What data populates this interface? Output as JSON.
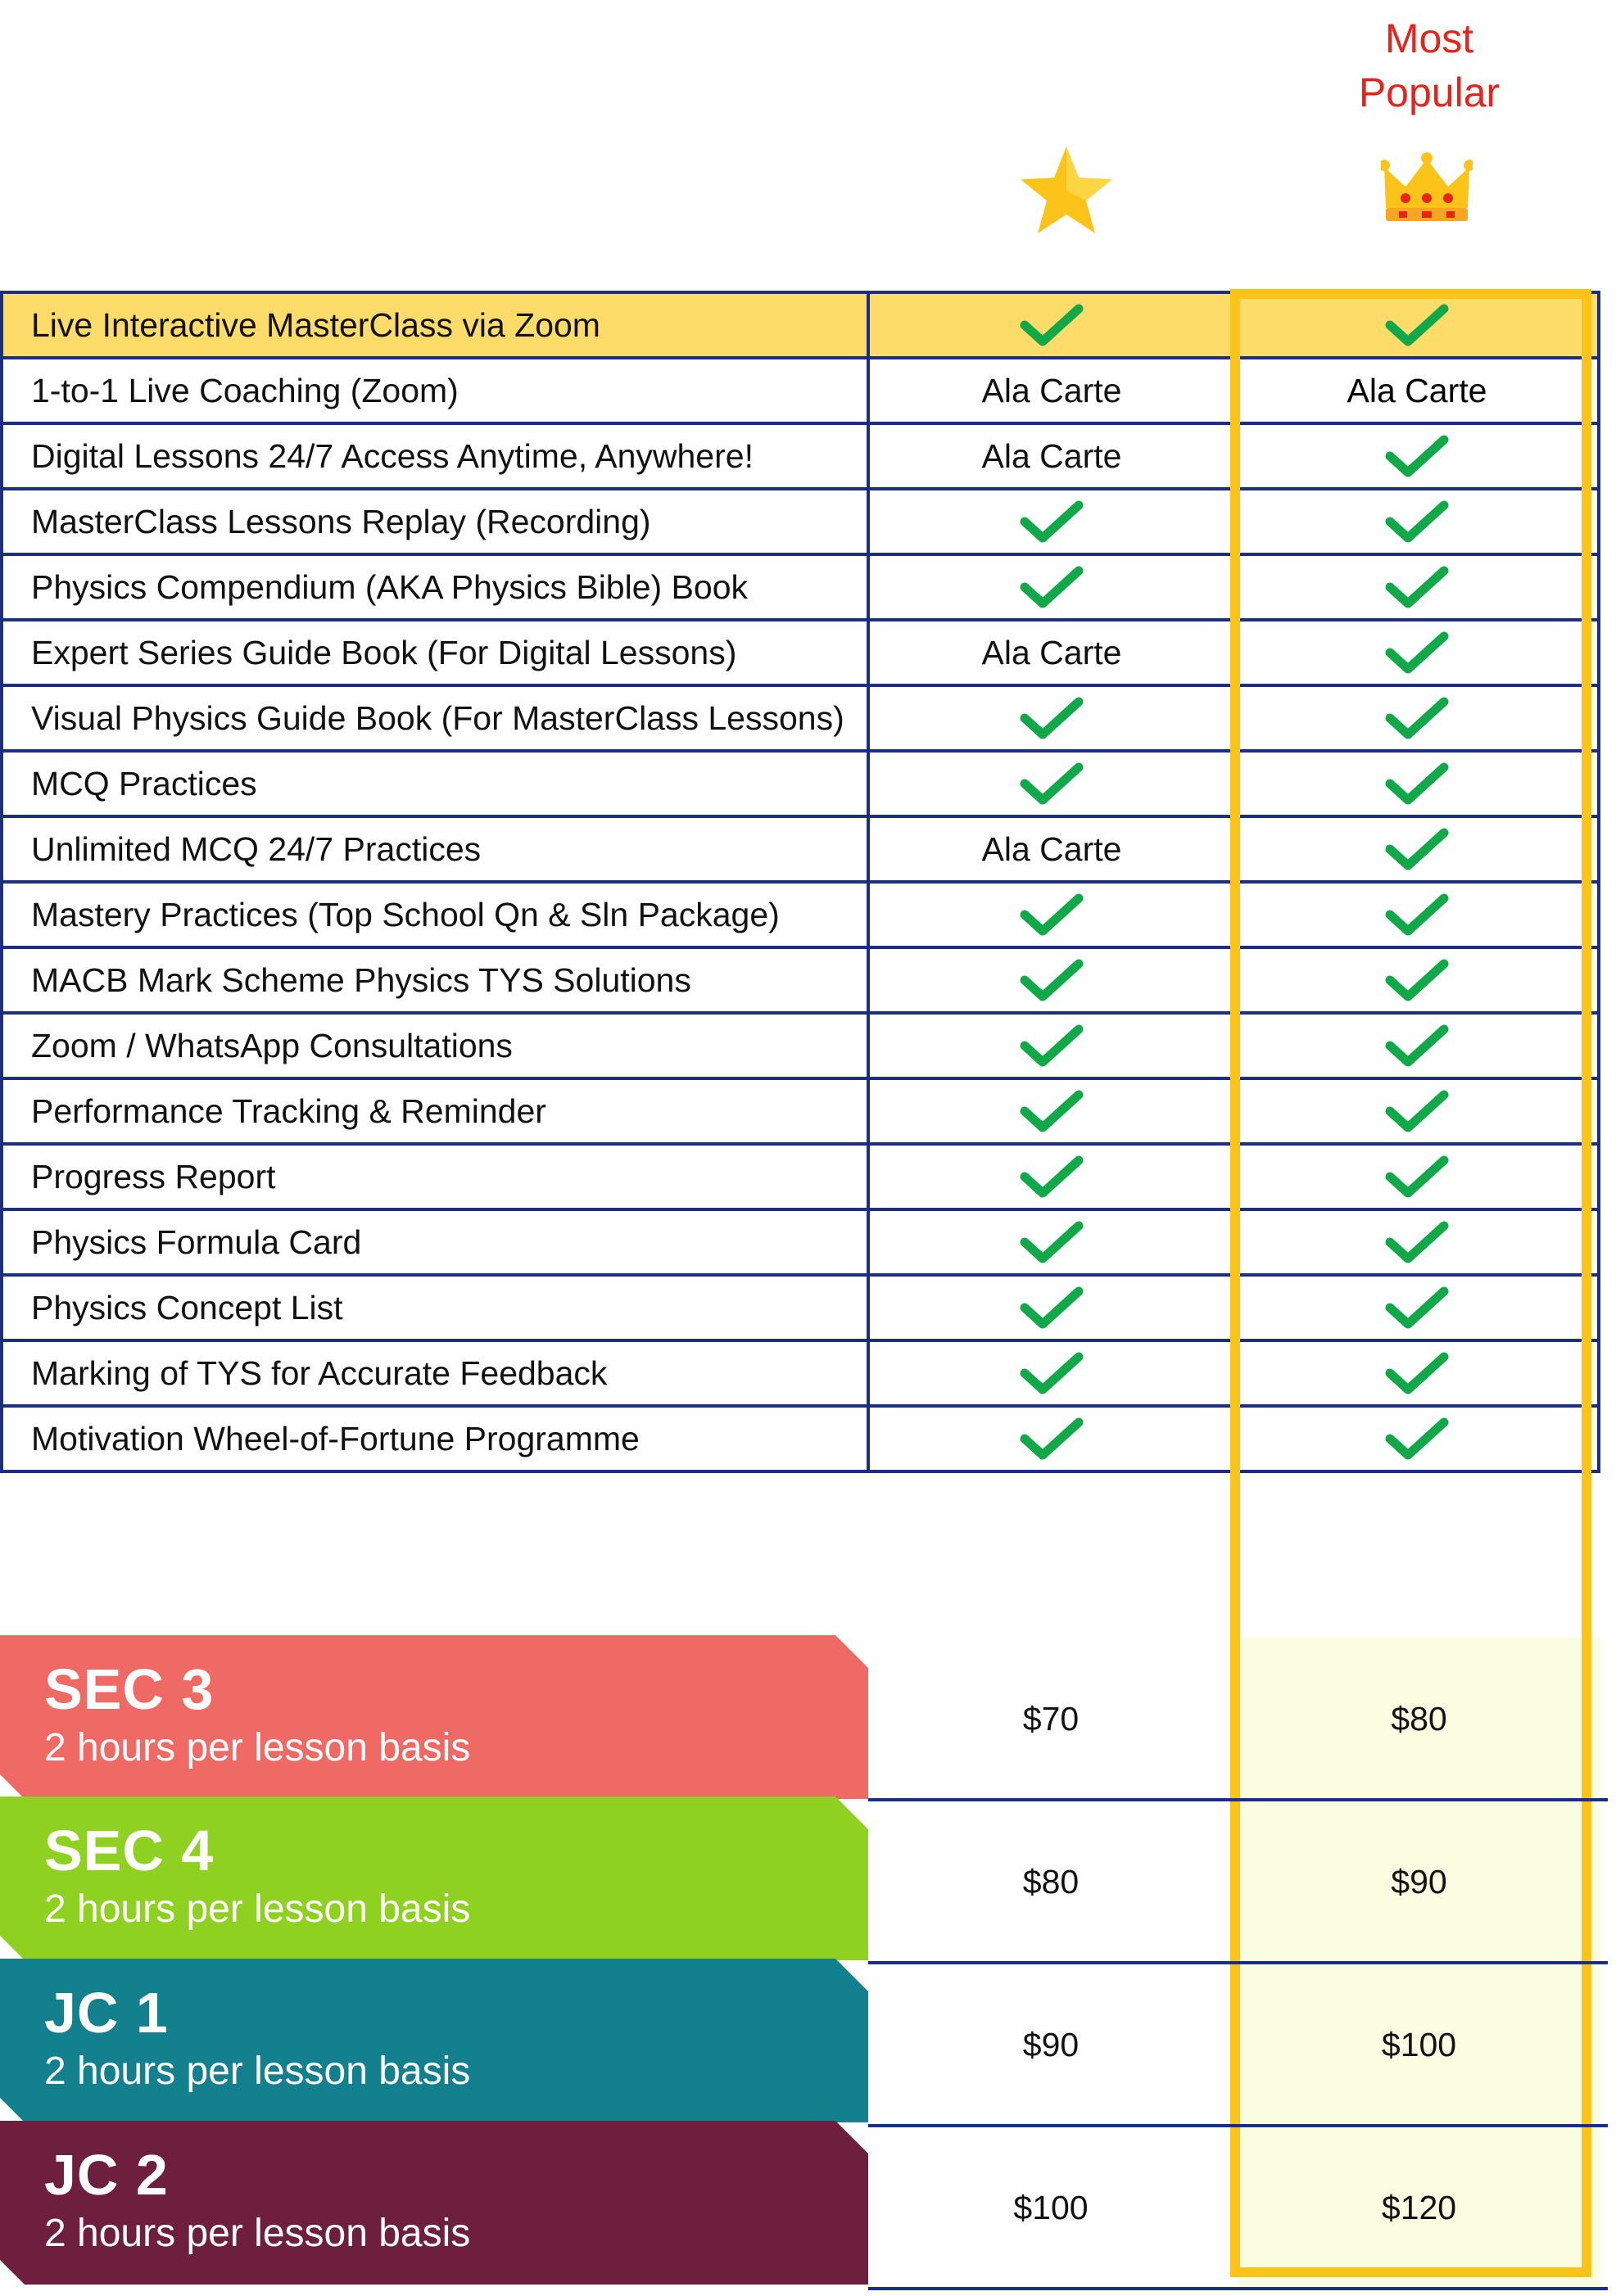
{
  "header": {
    "most_popular_line1": "Most",
    "most_popular_line2": "Popular"
  },
  "icons": {
    "star": "star-icon",
    "crown": "crown-icon",
    "check": "check-icon"
  },
  "colors": {
    "border": "#1a2e86",
    "highlight_row": "#fddc6a",
    "popular_frame": "#fcc419",
    "check": "#11a84a",
    "most_popular_text": "#e8231c",
    "sec3": "#ef6a65",
    "sec4": "#8fd120",
    "jc1": "#13808d",
    "jc2": "#6e1f3e",
    "popular_price_bg": "#fafde0"
  },
  "features": [
    {
      "label": "Live Interactive MasterClass via Zoom",
      "col1": "check",
      "col2": "check"
    },
    {
      "label": "1-to-1 Live Coaching (Zoom)",
      "col1": "Ala Carte",
      "col2": "Ala Carte"
    },
    {
      "label": "Digital Lessons 24/7 Access Anytime, Anywhere!",
      "col1": "Ala Carte",
      "col2": "check"
    },
    {
      "label": "MasterClass Lessons Replay (Recording)",
      "col1": "check",
      "col2": "check"
    },
    {
      "label": "Physics Compendium (AKA Physics Bible) Book",
      "col1": "check",
      "col2": "check"
    },
    {
      "label": "Expert Series Guide Book (For Digital Lessons)",
      "col1": "Ala Carte",
      "col2": "check"
    },
    {
      "label": "Visual Physics Guide Book (For MasterClass Lessons)",
      "col1": "check",
      "col2": "check"
    },
    {
      "label": "MCQ Practices",
      "col1": "check",
      "col2": "check"
    },
    {
      "label": "Unlimited MCQ 24/7 Practices",
      "col1": "Ala Carte",
      "col2": "check"
    },
    {
      "label": "Mastery Practices (Top School Qn & Sln Package)",
      "col1": "check",
      "col2": "check"
    },
    {
      "label": "MACB Mark Scheme Physics TYS Solutions",
      "col1": "check",
      "col2": "check"
    },
    {
      "label": "Zoom / WhatsApp Consultations",
      "col1": "check",
      "col2": "check"
    },
    {
      "label": "Performance Tracking & Reminder",
      "col1": "check",
      "col2": "check"
    },
    {
      "label": "Progress Report",
      "col1": "check",
      "col2": "check"
    },
    {
      "label": "Physics Formula Card",
      "col1": "check",
      "col2": "check"
    },
    {
      "label": "Physics Concept List",
      "col1": "check",
      "col2": "check"
    },
    {
      "label": "Marking of TYS for Accurate Feedback",
      "col1": "check",
      "col2": "check"
    },
    {
      "label": "Motivation Wheel-of-Fortune Programme",
      "col1": "check",
      "col2": "check"
    }
  ],
  "pricing": [
    {
      "level": "SEC 3",
      "basis": "2 hours per lesson basis",
      "price1": "$70",
      "price2": "$80",
      "color": "#ef6a65"
    },
    {
      "level": "SEC 4",
      "basis": "2 hours per lesson basis",
      "price1": "$80",
      "price2": "$90",
      "color": "#8fd120"
    },
    {
      "level": "JC 1",
      "basis": "2 hours per lesson basis",
      "price1": "$90",
      "price2": "$100",
      "color": "#13808d"
    },
    {
      "level": "JC 2",
      "basis": "2 hours per lesson basis",
      "price1": "$100",
      "price2": "$120",
      "color": "#6e1f3e"
    }
  ]
}
